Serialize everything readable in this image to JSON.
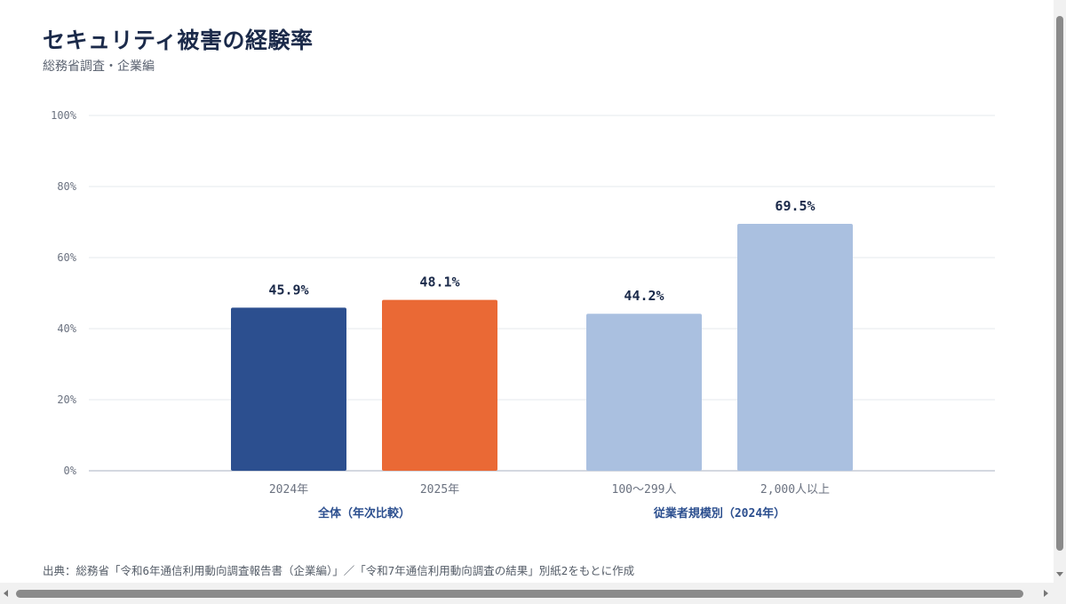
{
  "header": {
    "title": "セキュリティ被害の経験率",
    "subtitle": "総務省調査・企業編"
  },
  "chart_data": {
    "type": "bar",
    "title": "セキュリティ被害の経験率",
    "subtitle": "総務省調査・企業編",
    "ylim": [
      0,
      100
    ],
    "y_ticks": [
      "0%",
      "20%",
      "40%",
      "60%",
      "80%",
      "100%"
    ],
    "grid": true,
    "groups": [
      {
        "label": "全体（年次比較）",
        "bars": [
          {
            "category": "2024年",
            "value": 45.9,
            "label": "45.9%",
            "color": "#2c4f8f"
          },
          {
            "category": "2025年",
            "value": 48.1,
            "label": "48.1%",
            "color": "#ea6935"
          }
        ]
      },
      {
        "label": "従業者規模別（2024年）",
        "bars": [
          {
            "category": "100〜299人",
            "value": 44.2,
            "label": "44.2%",
            "color": "#aac0e0"
          },
          {
            "category": "2,000人以上",
            "value": 69.5,
            "label": "69.5%",
            "color": "#aac0e0"
          }
        ]
      }
    ]
  },
  "footer": {
    "source": "出典：総務省「令和6年通信利用動向調査報告書（企業編）」／「令和7年通信利用動向調査の結果」別紙2をもとに作成"
  },
  "colors": {
    "title": "#1b2a4a",
    "group_label": "#2c4f8f",
    "axis_text": "#6b7280",
    "grid": "#e6e8ec",
    "baseline": "#c5ccd6"
  }
}
